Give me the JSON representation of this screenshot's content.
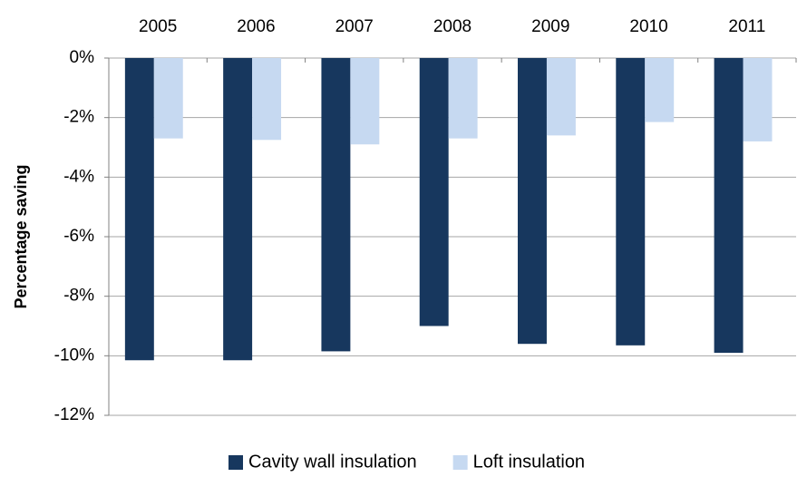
{
  "chart_data": {
    "type": "bar",
    "y_label": "Percentage saving",
    "categories": [
      "2005",
      "2006",
      "2007",
      "2008",
      "2009",
      "2010",
      "2011"
    ],
    "series": [
      {
        "name": "Cavity wall insulation",
        "color": "#17375e",
        "values": [
          -10.15,
          -10.15,
          -9.85,
          -9.0,
          -9.6,
          -9.65,
          -9.9
        ]
      },
      {
        "name": "Loft insulation",
        "color": "#c6d9f1",
        "values": [
          -2.7,
          -2.75,
          -2.9,
          -2.7,
          -2.6,
          -2.15,
          -2.8
        ]
      }
    ],
    "ylim": [
      -12,
      0
    ],
    "yticks": [
      {
        "value": 0,
        "label": "0%"
      },
      {
        "value": -2,
        "label": "-2%"
      },
      {
        "value": -4,
        "label": "-4%"
      },
      {
        "value": -6,
        "label": "-6%"
      },
      {
        "value": -8,
        "label": "-8%"
      },
      {
        "value": -10,
        "label": "-10%"
      },
      {
        "value": -12,
        "label": "-12%"
      }
    ],
    "grid": true,
    "legend": "bottom"
  }
}
